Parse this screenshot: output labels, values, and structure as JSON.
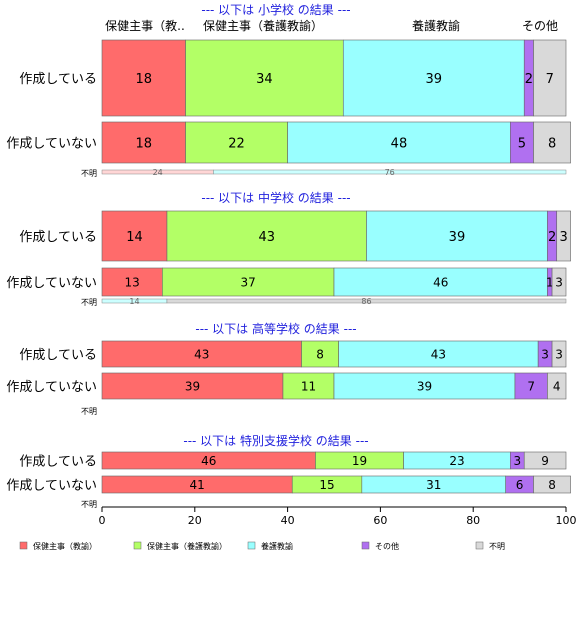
{
  "chart_data": {
    "type": "bar",
    "orientation": "horizontal",
    "stacked": true,
    "xlim": [
      0,
      100
    ],
    "x_ticks": [
      "0",
      "20",
      "40",
      "60",
      "80",
      "100"
    ],
    "column_headers": [
      "保健主事（教..",
      "保健主事（養護教諭）",
      "養護教諭",
      "その他",
      "不明"
    ],
    "legend_position": "bottom",
    "series": [
      {
        "name": "保健主事（教諭）",
        "color": "#ff6b6b"
      },
      {
        "name": "保健主事（養護教諭）",
        "color": "#b3ff66"
      },
      {
        "name": "養護教諭",
        "color": "#99ffff"
      },
      {
        "name": "その他",
        "color": "#b070f0"
      },
      {
        "name": "不明",
        "color": "#d9d9d9"
      }
    ],
    "panels": [
      {
        "title": "--- 以下は 小学校 の結果 ---",
        "rows": [
          {
            "label": "作成している",
            "values": [
              18,
              34,
              39,
              2,
              7
            ]
          },
          {
            "label": "作成していない",
            "values": [
              18,
              22,
              48,
              5,
              8
            ]
          }
        ],
        "unknown": {
          "label": "不明",
          "values": [
            24,
            76
          ]
        }
      },
      {
        "title": "--- 以下は 中学校 の結果 ---",
        "rows": [
          {
            "label": "作成している",
            "values": [
              14,
              43,
              39,
              2,
              3
            ]
          },
          {
            "label": "作成していない",
            "values": [
              13,
              37,
              46,
              1,
              3
            ]
          }
        ],
        "unknown": {
          "label": "不明",
          "values": [
            14,
            86
          ]
        }
      },
      {
        "title": "--- 以下は 高等学校 の結果 ---",
        "rows": [
          {
            "label": "作成している",
            "values": [
              43,
              8,
              43,
              3,
              3
            ]
          },
          {
            "label": "作成していない",
            "values": [
              39,
              11,
              39,
              7,
              4
            ]
          }
        ],
        "unknown": {
          "label": "不明",
          "values": []
        }
      },
      {
        "title": "--- 以下は 特別支援学校 の結果 ---",
        "rows": [
          {
            "label": "作成している",
            "values": [
              46,
              19,
              23,
              3,
              9
            ]
          },
          {
            "label": "作成していない",
            "values": [
              41,
              15,
              31,
              6,
              8
            ]
          }
        ],
        "unknown": {
          "label": "不明",
          "values": []
        }
      }
    ]
  }
}
